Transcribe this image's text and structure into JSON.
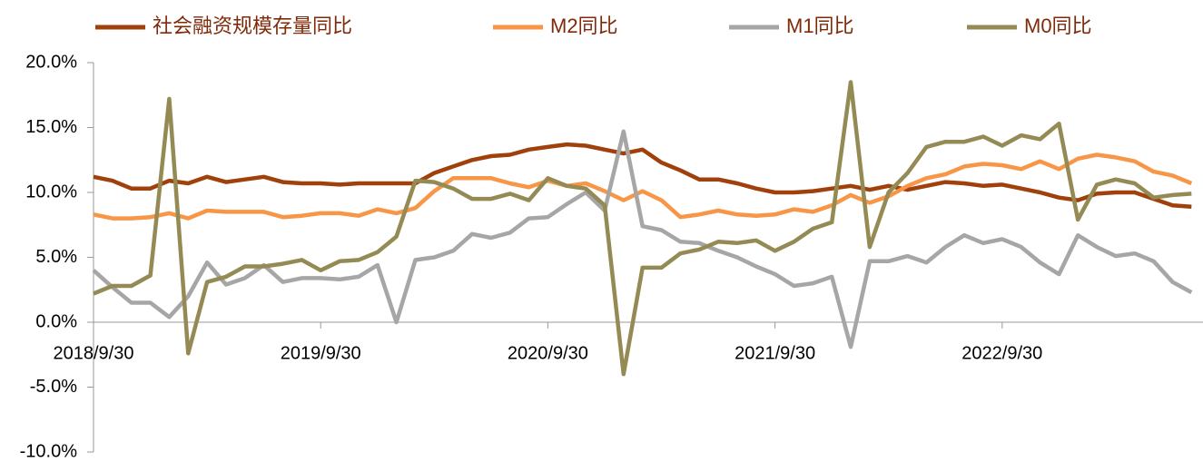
{
  "chart_data": {
    "type": "line",
    "categories": [
      "2018/9/30",
      null,
      null,
      null,
      null,
      null,
      null,
      null,
      null,
      null,
      null,
      null,
      "2019/9/30",
      null,
      null,
      null,
      null,
      null,
      null,
      null,
      null,
      null,
      null,
      null,
      "2020/9/30",
      null,
      null,
      null,
      null,
      null,
      null,
      null,
      null,
      null,
      null,
      null,
      "2021/9/30",
      null,
      null,
      null,
      null,
      null,
      null,
      null,
      null,
      null,
      null,
      null,
      "2022/9/30",
      null,
      null,
      null,
      null,
      null,
      null,
      null,
      null,
      null,
      null
    ],
    "series": [
      {
        "name": "社会融资规模存量同比",
        "color": "#a0400b",
        "values": [
          11.2,
          10.9,
          10.3,
          10.3,
          10.9,
          10.7,
          11.2,
          10.8,
          11.0,
          11.2,
          10.8,
          10.7,
          10.7,
          10.6,
          10.7,
          10.7,
          10.7,
          10.7,
          11.5,
          12.0,
          12.5,
          12.8,
          12.9,
          13.3,
          13.5,
          13.7,
          13.6,
          13.3,
          13.0,
          13.3,
          12.3,
          11.7,
          11.0,
          11.0,
          10.7,
          10.3,
          10.0,
          10.0,
          10.1,
          10.3,
          10.5,
          10.2,
          10.5,
          10.2,
          10.5,
          10.8,
          10.7,
          10.5,
          10.6,
          10.3,
          10.0,
          9.6,
          9.4,
          9.9,
          10.0,
          10.0,
          9.5,
          9.0,
          8.9
        ]
      },
      {
        "name": "M2同比",
        "color": "#f79646",
        "values": [
          8.3,
          8.0,
          8.0,
          8.1,
          8.4,
          8.0,
          8.6,
          8.5,
          8.5,
          8.5,
          8.1,
          8.2,
          8.4,
          8.4,
          8.2,
          8.7,
          8.4,
          8.8,
          10.1,
          11.1,
          11.1,
          11.1,
          10.7,
          10.4,
          10.9,
          10.5,
          10.7,
          10.1,
          9.4,
          10.1,
          9.4,
          8.1,
          8.3,
          8.6,
          8.3,
          8.2,
          8.3,
          8.7,
          8.5,
          9.0,
          9.8,
          9.2,
          9.7,
          10.5,
          11.1,
          11.4,
          12.0,
          12.2,
          12.1,
          11.8,
          12.4,
          11.8,
          12.6,
          12.9,
          12.7,
          12.4,
          11.6,
          11.3,
          10.7
        ]
      },
      {
        "name": "M1同比",
        "color": "#a6a6a6",
        "values": [
          4.0,
          2.7,
          1.5,
          1.5,
          0.4,
          2.0,
          4.6,
          2.9,
          3.4,
          4.4,
          3.1,
          3.4,
          3.4,
          3.3,
          3.5,
          4.4,
          0.0,
          4.8,
          5.0,
          5.5,
          6.8,
          6.5,
          6.9,
          8.0,
          8.1,
          9.1,
          10.0,
          8.6,
          14.7,
          7.4,
          7.1,
          6.2,
          6.1,
          5.5,
          5.0,
          4.3,
          3.7,
          2.8,
          3.0,
          3.5,
          -1.9,
          4.7,
          4.7,
          5.1,
          4.6,
          5.8,
          6.7,
          6.1,
          6.4,
          5.8,
          4.6,
          3.7,
          6.7,
          5.8,
          5.1,
          5.3,
          4.7,
          3.1,
          2.3
        ]
      },
      {
        "name": "M0同比",
        "color": "#948a54",
        "values": [
          2.2,
          2.8,
          2.8,
          3.6,
          17.2,
          -2.4,
          3.1,
          3.5,
          4.3,
          4.3,
          4.5,
          4.8,
          4.0,
          4.7,
          4.8,
          5.4,
          6.6,
          10.9,
          10.8,
          10.3,
          9.5,
          9.5,
          9.9,
          9.4,
          11.1,
          10.5,
          10.3,
          9.0,
          -4.0,
          4.2,
          4.2,
          5.3,
          5.6,
          6.2,
          6.1,
          6.3,
          5.5,
          6.2,
          7.2,
          7.7,
          18.5,
          5.8,
          10.0,
          11.5,
          13.5,
          13.9,
          13.9,
          14.3,
          13.6,
          14.4,
          14.1,
          15.3,
          7.9,
          10.6,
          11.0,
          10.7,
          9.6,
          9.8,
          9.9
        ]
      }
    ],
    "ylim": [
      -10,
      20
    ],
    "yticks": [
      {
        "value": -10,
        "label": "-10.0%"
      },
      {
        "value": -5,
        "label": "-5.0%"
      },
      {
        "value": 0,
        "label": "0.0%"
      },
      {
        "value": 5,
        "label": "5.0%"
      },
      {
        "value": 10,
        "label": "10.0%"
      },
      {
        "value": 15,
        "label": "15.0%"
      },
      {
        "value": 20,
        "label": "20.0%"
      }
    ],
    "grid": false,
    "legend": "top"
  }
}
